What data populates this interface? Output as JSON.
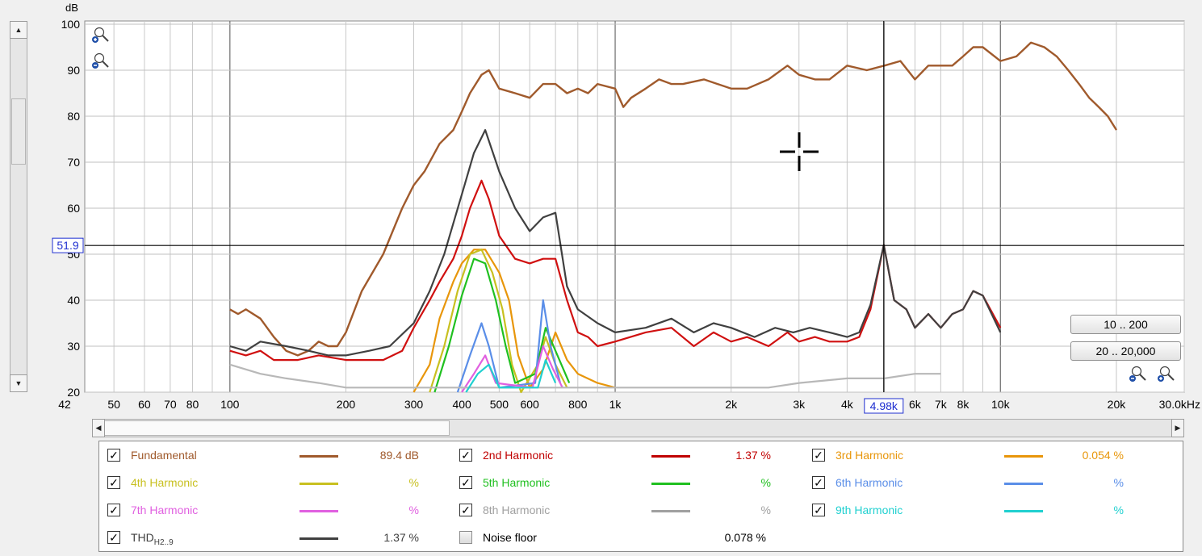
{
  "chart_data": {
    "type": "line",
    "ylabel": "dB",
    "xlabel": "",
    "x_scale": "log",
    "xlim": [
      42,
      30000
    ],
    "ylim": [
      20,
      100
    ],
    "yticks": [
      20,
      30,
      40,
      50,
      60,
      70,
      80,
      90,
      100
    ],
    "xticks": [
      {
        "v": 42,
        "label": "42"
      },
      {
        "v": 50,
        "label": "50"
      },
      {
        "v": 60,
        "label": "60"
      },
      {
        "v": 70,
        "label": "70"
      },
      {
        "v": 80,
        "label": "80"
      },
      {
        "v": 100,
        "label": "100"
      },
      {
        "v": 200,
        "label": "200"
      },
      {
        "v": 300,
        "label": "300"
      },
      {
        "v": 400,
        "label": "400"
      },
      {
        "v": 500,
        "label": "500"
      },
      {
        "v": 600,
        "label": "600"
      },
      {
        "v": 800,
        "label": "800"
      },
      {
        "v": 1000,
        "label": "1k"
      },
      {
        "v": 2000,
        "label": "2k"
      },
      {
        "v": 3000,
        "label": "3k"
      },
      {
        "v": 4000,
        "label": "4k"
      },
      {
        "v": 6000,
        "label": "6k"
      },
      {
        "v": 7000,
        "label": "7k"
      },
      {
        "v": 8000,
        "label": "8k"
      },
      {
        "v": 10000,
        "label": "10k"
      },
      {
        "v": 20000,
        "label": "20k"
      },
      {
        "v": 30000,
        "label": "30.0kHz"
      }
    ],
    "cursor": {
      "x": 4980,
      "x_label": "4.98k",
      "y": 51.9,
      "y_label": "51.9"
    },
    "grid": true,
    "series": [
      {
        "name": "Fundamental",
        "color": "#a05a2c",
        "points": [
          [
            100,
            38
          ],
          [
            105,
            37
          ],
          [
            110,
            38
          ],
          [
            120,
            36
          ],
          [
            130,
            32
          ],
          [
            140,
            29
          ],
          [
            150,
            28
          ],
          [
            160,
            29
          ],
          [
            170,
            31
          ],
          [
            180,
            30
          ],
          [
            190,
            30
          ],
          [
            200,
            33
          ],
          [
            220,
            42
          ],
          [
            250,
            50
          ],
          [
            280,
            60
          ],
          [
            300,
            65
          ],
          [
            320,
            68
          ],
          [
            350,
            74
          ],
          [
            380,
            77
          ],
          [
            400,
            81
          ],
          [
            420,
            85
          ],
          [
            450,
            89
          ],
          [
            470,
            90
          ],
          [
            500,
            86
          ],
          [
            550,
            85
          ],
          [
            600,
            84
          ],
          [
            650,
            87
          ],
          [
            700,
            87
          ],
          [
            750,
            85
          ],
          [
            800,
            86
          ],
          [
            850,
            85
          ],
          [
            900,
            87
          ],
          [
            1000,
            86
          ],
          [
            1050,
            82
          ],
          [
            1100,
            84
          ],
          [
            1200,
            86
          ],
          [
            1300,
            88
          ],
          [
            1400,
            87
          ],
          [
            1500,
            87
          ],
          [
            1700,
            88
          ],
          [
            2000,
            86
          ],
          [
            2200,
            86
          ],
          [
            2500,
            88
          ],
          [
            2800,
            91
          ],
          [
            3000,
            89
          ],
          [
            3300,
            88
          ],
          [
            3600,
            88
          ],
          [
            4000,
            91
          ],
          [
            4500,
            90
          ],
          [
            5000,
            91
          ],
          [
            5500,
            92
          ],
          [
            6000,
            88
          ],
          [
            6500,
            91
          ],
          [
            7000,
            91
          ],
          [
            7500,
            91
          ],
          [
            8000,
            93
          ],
          [
            8500,
            95
          ],
          [
            9000,
            95
          ],
          [
            10000,
            92
          ],
          [
            11000,
            93
          ],
          [
            12000,
            96
          ],
          [
            13000,
            95
          ],
          [
            14000,
            93
          ],
          [
            15000,
            90
          ],
          [
            16000,
            87
          ],
          [
            17000,
            84
          ],
          [
            18000,
            82
          ],
          [
            19000,
            80
          ],
          [
            20000,
            77
          ]
        ]
      },
      {
        "name": "2nd Harmonic",
        "color": "#d01010",
        "points": [
          [
            100,
            29
          ],
          [
            110,
            28
          ],
          [
            120,
            29
          ],
          [
            130,
            27
          ],
          [
            150,
            27
          ],
          [
            170,
            28
          ],
          [
            200,
            27
          ],
          [
            250,
            27
          ],
          [
            280,
            29
          ],
          [
            300,
            34
          ],
          [
            330,
            40
          ],
          [
            350,
            44
          ],
          [
            380,
            49
          ],
          [
            400,
            54
          ],
          [
            420,
            60
          ],
          [
            450,
            66
          ],
          [
            470,
            62
          ],
          [
            500,
            54
          ],
          [
            550,
            49
          ],
          [
            600,
            48
          ],
          [
            650,
            49
          ],
          [
            700,
            49
          ],
          [
            750,
            40
          ],
          [
            800,
            33
          ],
          [
            850,
            32
          ],
          [
            900,
            30
          ],
          [
            1000,
            31
          ],
          [
            1200,
            33
          ],
          [
            1400,
            34
          ],
          [
            1600,
            30
          ],
          [
            1800,
            33
          ],
          [
            2000,
            31
          ],
          [
            2200,
            32
          ],
          [
            2500,
            30
          ],
          [
            2800,
            33
          ],
          [
            3000,
            31
          ],
          [
            3300,
            32
          ],
          [
            3600,
            31
          ],
          [
            4000,
            31
          ],
          [
            4300,
            32
          ],
          [
            4600,
            38
          ],
          [
            4980,
            52
          ],
          [
            5300,
            40
          ],
          [
            5700,
            38
          ],
          [
            6000,
            34
          ],
          [
            6500,
            37
          ],
          [
            7000,
            34
          ],
          [
            7500,
            37
          ],
          [
            8000,
            38
          ],
          [
            8500,
            42
          ],
          [
            9000,
            41
          ],
          [
            10000,
            34
          ]
        ]
      },
      {
        "name": "3rd Harmonic",
        "color": "#e8960a",
        "points": [
          [
            300,
            20
          ],
          [
            330,
            26
          ],
          [
            350,
            36
          ],
          [
            380,
            44
          ],
          [
            400,
            48
          ],
          [
            430,
            51
          ],
          [
            460,
            51
          ],
          [
            500,
            46
          ],
          [
            530,
            40
          ],
          [
            560,
            28
          ],
          [
            600,
            21
          ],
          [
            650,
            25
          ],
          [
            700,
            33
          ],
          [
            750,
            27
          ],
          [
            800,
            24
          ],
          [
            900,
            22
          ],
          [
            1000,
            21
          ]
        ]
      },
      {
        "name": "4th Harmonic",
        "color": "#c8c020",
        "points": [
          [
            330,
            20
          ],
          [
            360,
            30
          ],
          [
            390,
            42
          ],
          [
            420,
            50
          ],
          [
            450,
            51
          ],
          [
            480,
            46
          ],
          [
            510,
            38
          ],
          [
            540,
            26
          ],
          [
            570,
            20
          ],
          [
            630,
            26
          ],
          [
            660,
            32
          ],
          [
            700,
            26
          ],
          [
            750,
            21
          ]
        ]
      },
      {
        "name": "5th Harmonic",
        "color": "#20c020",
        "points": [
          [
            340,
            20
          ],
          [
            370,
            30
          ],
          [
            400,
            41
          ],
          [
            430,
            49
          ],
          [
            460,
            48
          ],
          [
            490,
            40
          ],
          [
            520,
            30
          ],
          [
            550,
            22
          ],
          [
            620,
            24
          ],
          [
            660,
            34
          ],
          [
            700,
            29
          ],
          [
            760,
            22
          ]
        ]
      },
      {
        "name": "6th Harmonic",
        "color": "#5a8ee8",
        "points": [
          [
            390,
            20
          ],
          [
            420,
            28
          ],
          [
            450,
            35
          ],
          [
            470,
            30
          ],
          [
            500,
            21
          ],
          [
            620,
            22
          ],
          [
            650,
            40
          ],
          [
            680,
            30
          ],
          [
            720,
            22
          ]
        ]
      },
      {
        "name": "7th Harmonic",
        "color": "#e060e0",
        "points": [
          [
            400,
            20
          ],
          [
            430,
            24
          ],
          [
            460,
            28
          ],
          [
            490,
            22
          ],
          [
            610,
            21
          ],
          [
            650,
            30
          ],
          [
            690,
            25
          ],
          [
            730,
            21
          ]
        ]
      },
      {
        "name": "8th Harmonic",
        "color": "#b8b8b8",
        "points": [
          [
            100,
            26
          ],
          [
            120,
            24
          ],
          [
            140,
            23
          ],
          [
            170,
            22
          ],
          [
            200,
            21
          ],
          [
            2500,
            21
          ],
          [
            3000,
            22
          ],
          [
            4000,
            23
          ],
          [
            5000,
            23
          ],
          [
            6000,
            24
          ],
          [
            7000,
            24
          ]
        ]
      },
      {
        "name": "9th Harmonic",
        "color": "#20d0d0",
        "points": [
          [
            410,
            20
          ],
          [
            440,
            24
          ],
          [
            470,
            26
          ],
          [
            500,
            21
          ],
          [
            630,
            21
          ],
          [
            660,
            27
          ],
          [
            700,
            22
          ]
        ]
      },
      {
        "name": "THD",
        "color": "#404040",
        "points": [
          [
            100,
            30
          ],
          [
            110,
            29
          ],
          [
            120,
            31
          ],
          [
            140,
            30
          ],
          [
            160,
            29
          ],
          [
            180,
            28
          ],
          [
            200,
            28
          ],
          [
            230,
            29
          ],
          [
            260,
            30
          ],
          [
            300,
            35
          ],
          [
            330,
            42
          ],
          [
            360,
            50
          ],
          [
            400,
            63
          ],
          [
            430,
            72
          ],
          [
            460,
            77
          ],
          [
            500,
            68
          ],
          [
            550,
            60
          ],
          [
            600,
            55
          ],
          [
            650,
            58
          ],
          [
            700,
            59
          ],
          [
            750,
            43
          ],
          [
            800,
            38
          ],
          [
            900,
            35
          ],
          [
            1000,
            33
          ],
          [
            1200,
            34
          ],
          [
            1400,
            36
          ],
          [
            1600,
            33
          ],
          [
            1800,
            35
          ],
          [
            2000,
            34
          ],
          [
            2300,
            32
          ],
          [
            2600,
            34
          ],
          [
            2900,
            33
          ],
          [
            3200,
            34
          ],
          [
            3600,
            33
          ],
          [
            4000,
            32
          ],
          [
            4300,
            33
          ],
          [
            4600,
            39
          ],
          [
            4980,
            52
          ],
          [
            5300,
            40
          ],
          [
            5700,
            38
          ],
          [
            6000,
            34
          ],
          [
            6500,
            37
          ],
          [
            7000,
            34
          ],
          [
            7500,
            37
          ],
          [
            8000,
            38
          ],
          [
            8500,
            42
          ],
          [
            9000,
            41
          ],
          [
            10000,
            33
          ]
        ]
      }
    ]
  },
  "range_buttons": {
    "low": "10 .. 200",
    "full": "20 .. 20,000"
  },
  "legend": {
    "items": [
      {
        "label": "Fundamental",
        "value": "89.4 dB",
        "checked": true,
        "color": "#a05a2c"
      },
      {
        "label": "2nd Harmonic",
        "value": "1.37 %",
        "checked": true,
        "color": "#c00000"
      },
      {
        "label": "3rd Harmonic",
        "value": "0.054 %",
        "checked": true,
        "color": "#e8960a"
      },
      {
        "label": "4th Harmonic",
        "value": "%",
        "checked": true,
        "color": "#c8c020"
      },
      {
        "label": "5th Harmonic",
        "value": "%",
        "checked": true,
        "color": "#20c020"
      },
      {
        "label": "6th Harmonic",
        "value": "%",
        "checked": true,
        "color": "#5a8ee8"
      },
      {
        "label": "7th Harmonic",
        "value": "%",
        "checked": true,
        "color": "#e060e0"
      },
      {
        "label": "8th Harmonic",
        "value": "%",
        "checked": true,
        "color": "#a0a0a0"
      },
      {
        "label": "9th Harmonic",
        "value": "%",
        "checked": true,
        "color": "#20d0d0"
      },
      {
        "label": "THD",
        "sub": "H2..9",
        "value": "1.37 %",
        "checked": true,
        "color": "#404040"
      },
      {
        "label": "Noise floor",
        "value": "0.078 %",
        "checked": false,
        "color": "#000000"
      }
    ]
  }
}
